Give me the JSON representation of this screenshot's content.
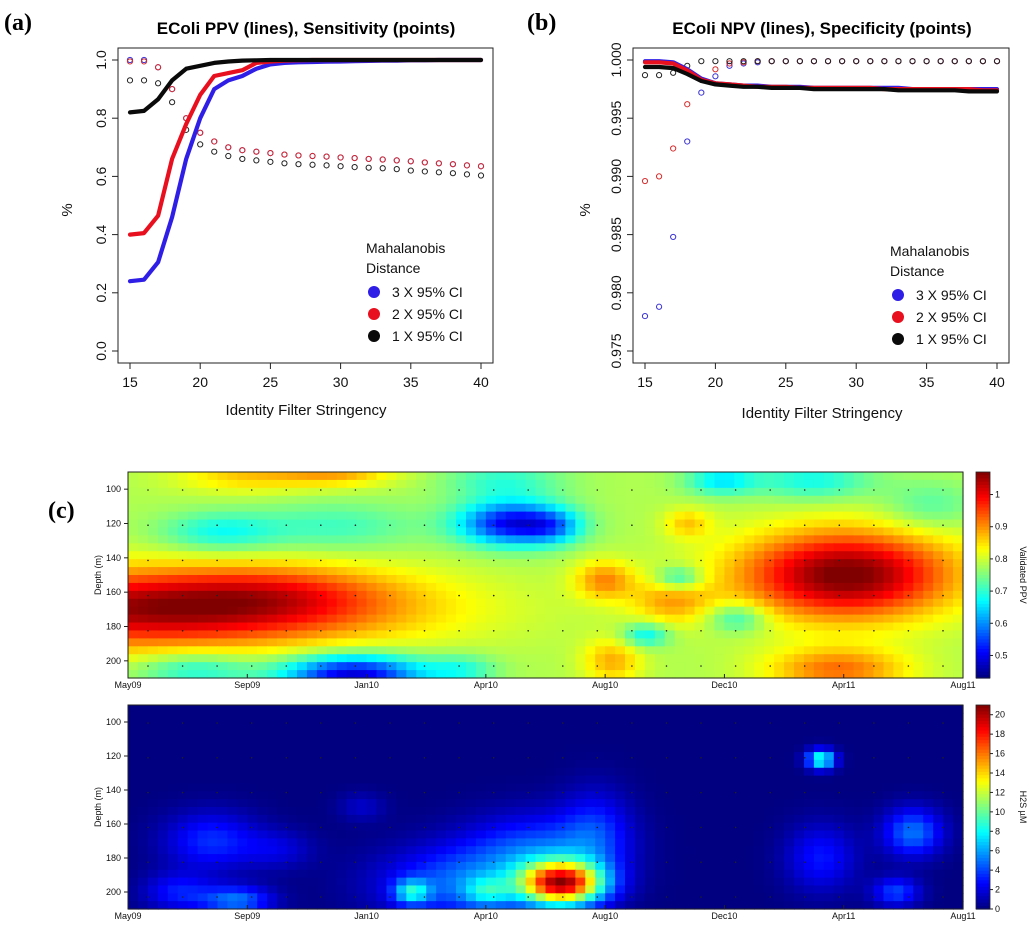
{
  "colors": {
    "ci3": "#2f1ee6",
    "ci2": "#e8101e",
    "ci1": "#0a0a0a",
    "ci3_point": "#3a32d8",
    "ci2_point": "#d82a2a",
    "ci1_point": "#222222",
    "overlap_point": "#8a2bc0"
  },
  "panels": {
    "a": {
      "letter": "(a)"
    },
    "b": {
      "letter": "(b)"
    },
    "c": {
      "letter": "(c)"
    }
  },
  "chart_data": [
    {
      "id": "a",
      "type": "line",
      "title": "EColi PPV (lines), Sensitivity (points)",
      "xlabel": "Identity Filter Stringency",
      "ylabel": "%",
      "xlim": [
        15,
        40
      ],
      "ylim": [
        0,
        1
      ],
      "xticks": [
        "15",
        "20",
        "25",
        "30",
        "35",
        "40"
      ],
      "yticks": [
        "0.0",
        "0.2",
        "0.4",
        "0.6",
        "0.8",
        "1.0"
      ],
      "grid": false,
      "legend": {
        "title_line1": "Mahalanobis",
        "title_line2": "Distance",
        "placement": "center-right",
        "entries": [
          "3 X 95% CI",
          "2 X 95% CI",
          "1 X 95% CI"
        ]
      },
      "x": [
        15,
        16,
        17,
        18,
        19,
        20,
        21,
        22,
        23,
        24,
        25,
        26,
        27,
        28,
        29,
        30,
        31,
        32,
        33,
        34,
        35,
        36,
        37,
        38,
        39,
        40
      ],
      "series": [
        {
          "name": "3 X 95% CI",
          "kind": "line",
          "values": [
            0.24,
            0.245,
            0.305,
            0.46,
            0.66,
            0.8,
            0.9,
            0.93,
            0.945,
            0.97,
            0.985,
            0.99,
            0.992,
            0.993,
            0.994,
            0.995,
            0.996,
            0.997,
            0.998,
            0.998,
            0.999,
            0.999,
            1,
            1,
            1,
            1
          ]
        },
        {
          "name": "2 X 95% CI",
          "kind": "line",
          "values": [
            0.4,
            0.405,
            0.465,
            0.66,
            0.78,
            0.88,
            0.945,
            0.955,
            0.965,
            0.99,
            0.995,
            0.998,
            0.999,
            1,
            1,
            1,
            1,
            1,
            1,
            1,
            1,
            1,
            1,
            1,
            1,
            1
          ]
        },
        {
          "name": "1 X 95% CI",
          "kind": "line",
          "values": [
            0.82,
            0.825,
            0.865,
            0.93,
            0.97,
            0.98,
            0.99,
            0.995,
            0.998,
            0.999,
            1,
            1,
            1,
            1,
            1,
            1,
            1,
            1,
            1,
            1,
            1,
            1,
            1,
            1,
            1,
            1
          ]
        },
        {
          "name": "3 X 95% CI",
          "kind": "points",
          "values": [
            1.0,
            1.0,
            0.975,
            0.9,
            0.8,
            0.75,
            0.72,
            0.7,
            0.69,
            0.685,
            0.68,
            0.675,
            0.672,
            0.67,
            0.668,
            0.665,
            0.663,
            0.66,
            0.658,
            0.655,
            0.652,
            0.648,
            0.645,
            0.642,
            0.638,
            0.635
          ]
        },
        {
          "name": "2 X 95% CI",
          "kind": "points",
          "values": [
            0.995,
            0.995,
            0.975,
            0.9,
            0.8,
            0.75,
            0.72,
            0.7,
            0.69,
            0.685,
            0.68,
            0.675,
            0.672,
            0.67,
            0.668,
            0.665,
            0.663,
            0.66,
            0.658,
            0.655,
            0.652,
            0.648,
            0.645,
            0.642,
            0.638,
            0.635
          ]
        },
        {
          "name": "1 X 95% CI",
          "kind": "points",
          "values": [
            0.93,
            0.93,
            0.92,
            0.855,
            0.76,
            0.71,
            0.685,
            0.67,
            0.66,
            0.655,
            0.65,
            0.645,
            0.642,
            0.64,
            0.638,
            0.635,
            0.632,
            0.63,
            0.628,
            0.625,
            0.62,
            0.617,
            0.614,
            0.611,
            0.607,
            0.603
          ]
        }
      ]
    },
    {
      "id": "b",
      "type": "line",
      "title": "EColi NPV (lines), Specificity (points)",
      "xlabel": "Identity Filter Stringency",
      "ylabel": "%",
      "xlim": [
        15,
        40
      ],
      "ylim": [
        0.975,
        1.0
      ],
      "xticks": [
        "15",
        "20",
        "25",
        "30",
        "35",
        "40"
      ],
      "yticks": [
        "0.975",
        "0.980",
        "0.985",
        "0.990",
        "0.995",
        "1.000"
      ],
      "grid": false,
      "legend": {
        "title_line1": "Mahalanobis",
        "title_line2": "Distance",
        "placement": "center-right",
        "entries": [
          "3 X 95% CI",
          "2 X 95% CI",
          "1 X 95% CI"
        ]
      },
      "x": [
        15,
        16,
        17,
        18,
        19,
        20,
        21,
        22,
        23,
        24,
        25,
        26,
        27,
        28,
        29,
        30,
        31,
        32,
        33,
        34,
        35,
        36,
        37,
        38,
        39,
        40
      ],
      "series": [
        {
          "name": "3 X 95% CI",
          "kind": "line",
          "values": [
            0.9999,
            0.9999,
            0.9998,
            0.9992,
            0.9984,
            0.998,
            0.9979,
            0.9978,
            0.9978,
            0.9977,
            0.9977,
            0.9977,
            0.9976,
            0.9976,
            0.9976,
            0.9976,
            0.9976,
            0.9976,
            0.9976,
            0.9975,
            0.9975,
            0.9975,
            0.9975,
            0.9975,
            0.9975,
            0.9975
          ]
        },
        {
          "name": "2 X 95% CI",
          "kind": "line",
          "values": [
            0.9998,
            0.9998,
            0.9997,
            0.9991,
            0.9983,
            0.998,
            0.9979,
            0.9978,
            0.9977,
            0.9977,
            0.9977,
            0.9976,
            0.9976,
            0.9976,
            0.9976,
            0.9976,
            0.9976,
            0.9975,
            0.9975,
            0.9975,
            0.9975,
            0.9975,
            0.9975,
            0.9975,
            0.9974,
            0.9974
          ]
        },
        {
          "name": "1 X 95% CI",
          "kind": "line",
          "values": [
            0.9994,
            0.9994,
            0.9993,
            0.9988,
            0.9982,
            0.9979,
            0.9978,
            0.9977,
            0.9977,
            0.9976,
            0.9976,
            0.9976,
            0.9975,
            0.9975,
            0.9975,
            0.9975,
            0.9975,
            0.9975,
            0.9974,
            0.9974,
            0.9974,
            0.9974,
            0.9974,
            0.9973,
            0.9973,
            0.9973
          ]
        },
        {
          "name": "3 X 95% CI",
          "kind": "points",
          "values": [
            0.978,
            0.9788,
            0.9848,
            0.993,
            0.9972,
            0.9986,
            0.9995,
            0.9997,
            0.9998,
            0.9999,
            0.9999,
            0.9999,
            0.9999,
            0.9999,
            0.9999,
            0.9999,
            0.9999,
            0.9999,
            0.9999,
            0.9999,
            0.9999,
            0.9999,
            0.9999,
            0.9999,
            0.9999,
            0.9999
          ]
        },
        {
          "name": "2 X 95% CI",
          "kind": "points",
          "values": [
            0.9896,
            0.99,
            0.9924,
            0.9962,
            0.9983,
            0.9992,
            0.9997,
            0.9998,
            0.9999,
            0.9999,
            0.9999,
            0.9999,
            0.9999,
            0.9999,
            0.9999,
            0.9999,
            0.9999,
            0.9999,
            0.9999,
            0.9999,
            0.9999,
            0.9999,
            0.9999,
            0.9999,
            0.9999,
            0.9999
          ]
        },
        {
          "name": "1 X 95% CI",
          "kind": "points",
          "values": [
            0.9987,
            0.9987,
            0.9989,
            0.9995,
            0.9999,
            0.9999,
            0.9999,
            0.9999,
            0.9999,
            0.9999,
            0.9999,
            0.9999,
            0.9999,
            0.9999,
            0.9999,
            0.9999,
            0.9999,
            0.9999,
            0.9999,
            0.9999,
            0.9999,
            0.9999,
            0.9999,
            0.9999,
            0.9999,
            0.9999
          ]
        }
      ]
    },
    {
      "id": "c-top",
      "type": "heatmap",
      "ylabel": "Depth (m)",
      "colorbar_label": "Validated PPV",
      "xticks": [
        "May09",
        "Sep09",
        "Jan10",
        "Apr10",
        "Aug10",
        "Dec10",
        "Apr11",
        "Aug11"
      ],
      "yticks": [
        "100",
        "120",
        "140",
        "160",
        "180",
        "200"
      ],
      "ylim": [
        90,
        210
      ],
      "zlim": [
        0.43,
        1.07
      ],
      "cbar_ticks": [
        "0.5",
        "0.6",
        "0.7",
        "0.8",
        "0.9",
        "1"
      ],
      "base": 0.78,
      "blobs": [
        {
          "t": 0.03,
          "d": 170,
          "st": 0.2,
          "sd": 16,
          "a": 0.27
        },
        {
          "t": 0.18,
          "d": 160,
          "st": 0.1,
          "sd": 12,
          "a": 0.08
        },
        {
          "t": 0.14,
          "d": 92,
          "st": 0.06,
          "sd": 7,
          "a": 0.08
        },
        {
          "t": 0.25,
          "d": 90,
          "st": 0.05,
          "sd": 6,
          "a": 0.1
        },
        {
          "t": 0.11,
          "d": 125,
          "st": 0.05,
          "sd": 8,
          "a": -0.1
        },
        {
          "t": 0.25,
          "d": 122,
          "st": 0.07,
          "sd": 10,
          "a": -0.07
        },
        {
          "t": 0.27,
          "d": 208,
          "st": 0.06,
          "sd": 8,
          "a": -0.3
        },
        {
          "t": 0.08,
          "d": 205,
          "st": 0.05,
          "sd": 7,
          "a": -0.1
        },
        {
          "t": 0.46,
          "d": 120,
          "st": 0.045,
          "sd": 9,
          "a": -0.28
        },
        {
          "t": 0.51,
          "d": 122,
          "st": 0.025,
          "sd": 7,
          "a": -0.1
        },
        {
          "t": 0.45,
          "d": 95,
          "st": 0.05,
          "sd": 8,
          "a": -0.08
        },
        {
          "t": 0.57,
          "d": 153,
          "st": 0.025,
          "sd": 8,
          "a": 0.12
        },
        {
          "t": 0.58,
          "d": 200,
          "st": 0.025,
          "sd": 9,
          "a": 0.1
        },
        {
          "t": 0.65,
          "d": 165,
          "st": 0.035,
          "sd": 10,
          "a": 0.1
        },
        {
          "t": 0.66,
          "d": 152,
          "st": 0.02,
          "sd": 5,
          "a": -0.12
        },
        {
          "t": 0.73,
          "d": 175,
          "st": 0.025,
          "sd": 6,
          "a": -0.1
        },
        {
          "t": 0.62,
          "d": 185,
          "st": 0.02,
          "sd": 5,
          "a": -0.12
        },
        {
          "t": 0.67,
          "d": 120,
          "st": 0.02,
          "sd": 6,
          "a": 0.08
        },
        {
          "t": 0.86,
          "d": 150,
          "st": 0.09,
          "sd": 18,
          "a": 0.3
        },
        {
          "t": 0.85,
          "d": 205,
          "st": 0.06,
          "sd": 9,
          "a": 0.14
        },
        {
          "t": 0.82,
          "d": 95,
          "st": 0.05,
          "sd": 8,
          "a": -0.1
        },
        {
          "t": 0.71,
          "d": 95,
          "st": 0.03,
          "sd": 6,
          "a": -0.12
        },
        {
          "t": 0.96,
          "d": 110,
          "st": 0.04,
          "sd": 10,
          "a": -0.06
        },
        {
          "t": 0.4,
          "d": 205,
          "st": 0.03,
          "sd": 6,
          "a": -0.08
        }
      ]
    },
    {
      "id": "c-bottom",
      "type": "heatmap",
      "ylabel": "Depth (m)",
      "colorbar_label": "H2S µM",
      "xticks": [
        "May09",
        "Sep09",
        "Jan10",
        "Apr10",
        "Aug10",
        "Dec10",
        "Apr11",
        "Aug11"
      ],
      "yticks": [
        "100",
        "120",
        "140",
        "160",
        "180",
        "200"
      ],
      "ylim": [
        90,
        210
      ],
      "zlim": [
        0,
        21
      ],
      "cbar_ticks": [
        "0",
        "2",
        "4",
        "6",
        "8",
        "10",
        "12",
        "14",
        "16",
        "18",
        "20"
      ],
      "base": 0,
      "blobs": [
        {
          "t": 0.1,
          "d": 170,
          "st": 0.04,
          "sd": 12,
          "a": 3.5
        },
        {
          "t": 0.06,
          "d": 200,
          "st": 0.03,
          "sd": 8,
          "a": 3.0
        },
        {
          "t": 0.13,
          "d": 205,
          "st": 0.03,
          "sd": 6,
          "a": 5.0
        },
        {
          "t": 0.18,
          "d": 175,
          "st": 0.03,
          "sd": 8,
          "a": 1.8
        },
        {
          "t": 0.4,
          "d": 195,
          "st": 0.07,
          "sd": 15,
          "a": 4.5
        },
        {
          "t": 0.34,
          "d": 200,
          "st": 0.015,
          "sd": 5,
          "a": 6.0
        },
        {
          "t": 0.43,
          "d": 200,
          "st": 0.02,
          "sd": 6,
          "a": 4.0
        },
        {
          "t": 0.52,
          "d": 195,
          "st": 0.035,
          "sd": 9,
          "a": 18.0
        },
        {
          "t": 0.49,
          "d": 175,
          "st": 0.06,
          "sd": 15,
          "a": 4.0
        },
        {
          "t": 0.56,
          "d": 165,
          "st": 0.03,
          "sd": 18,
          "a": 3.0
        },
        {
          "t": 0.83,
          "d": 122,
          "st": 0.012,
          "sd": 4,
          "a": 9.0
        },
        {
          "t": 0.83,
          "d": 180,
          "st": 0.03,
          "sd": 14,
          "a": 3.0
        },
        {
          "t": 0.94,
          "d": 165,
          "st": 0.025,
          "sd": 10,
          "a": 5.0
        },
        {
          "t": 0.92,
          "d": 200,
          "st": 0.02,
          "sd": 6,
          "a": 4.0
        },
        {
          "t": 0.28,
          "d": 150,
          "st": 0.02,
          "sd": 6,
          "a": 1.5
        }
      ]
    }
  ]
}
